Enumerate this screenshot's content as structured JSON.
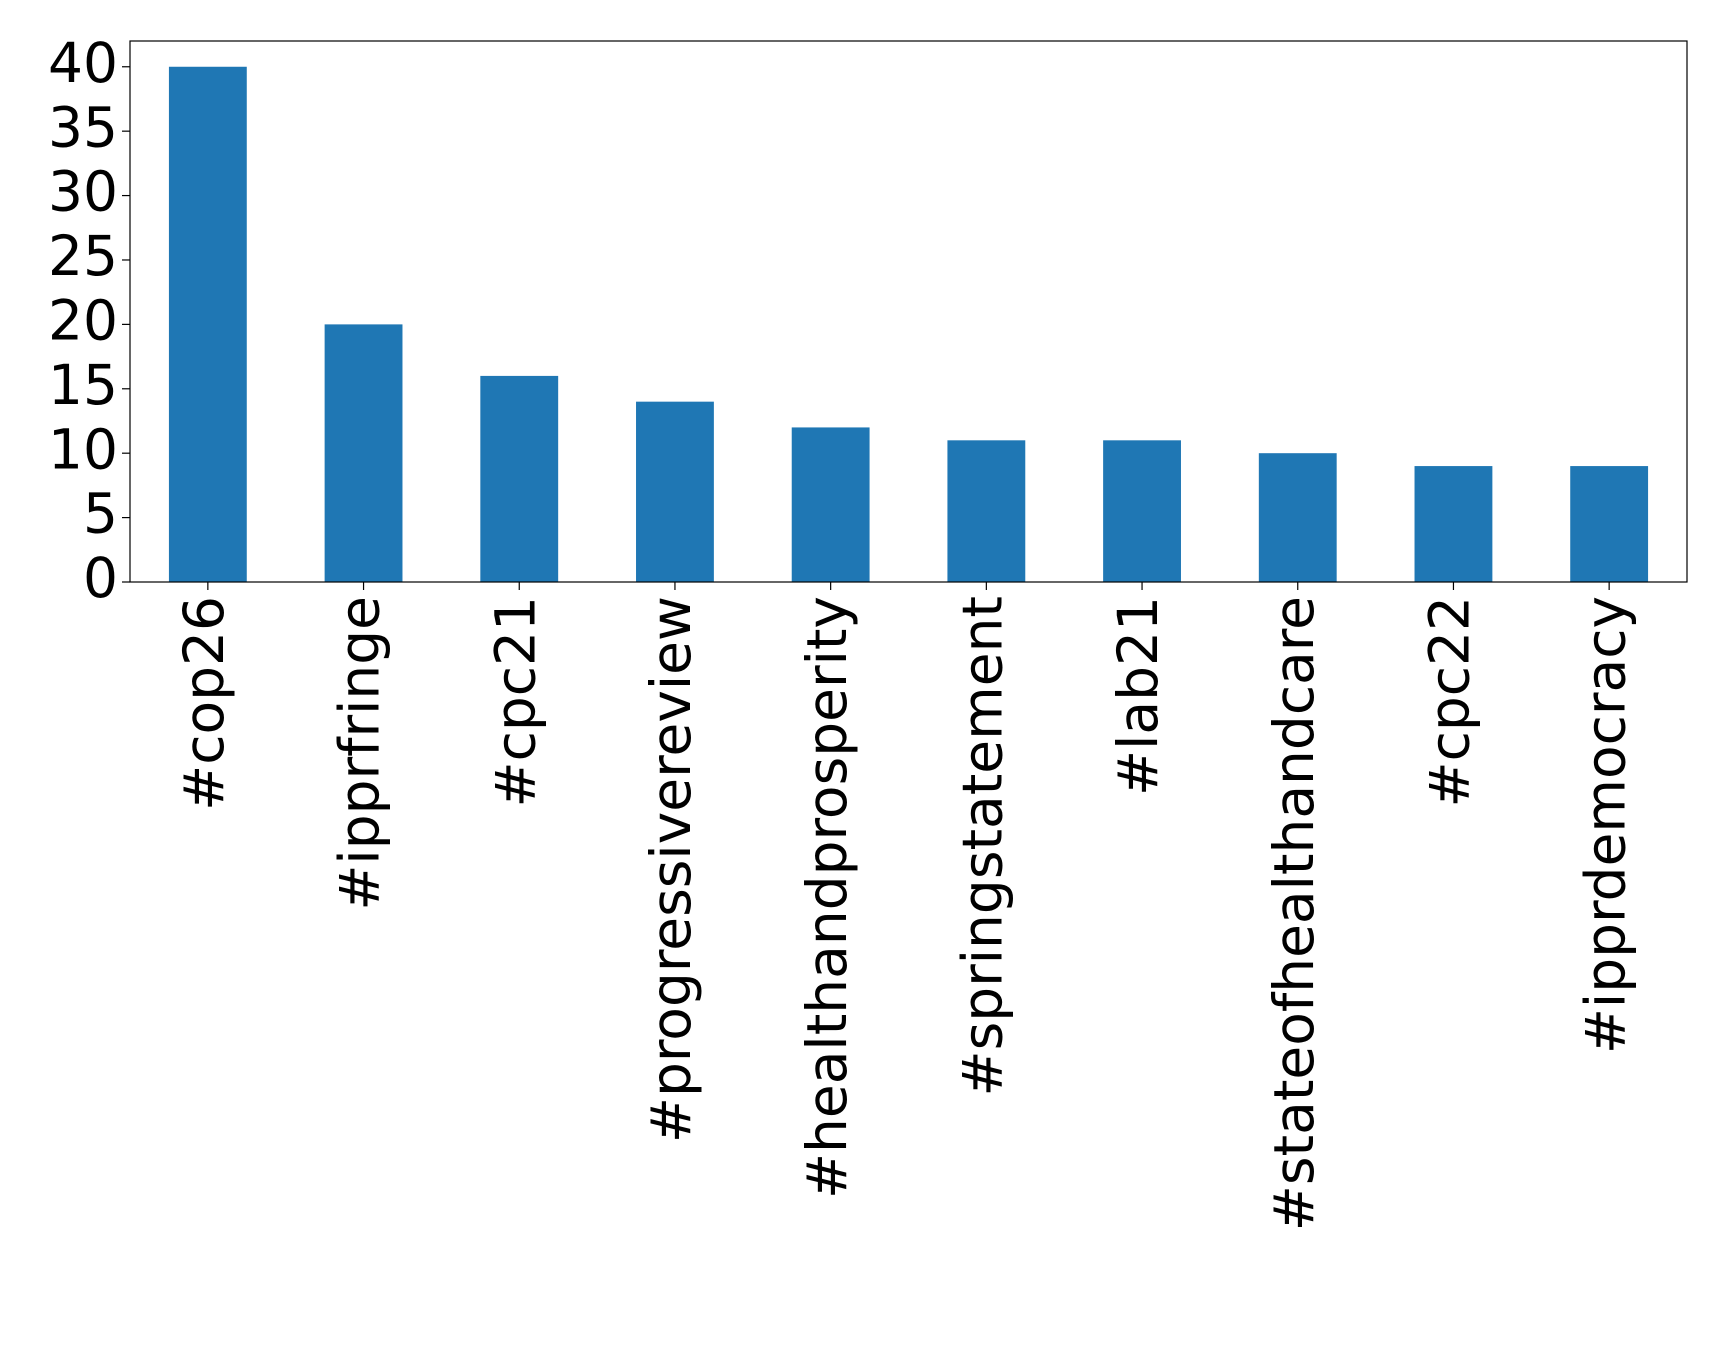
{
  "chart_data": {
    "type": "bar",
    "categories": [
      "#cop26",
      "#ipprfringe",
      "#cpc21",
      "#progressivereview",
      "#healthandprosperity",
      "#springstatement",
      "#lab21",
      "#stateofhealthandcare",
      "#cpc22",
      "#ipprdemocracy"
    ],
    "values": [
      40,
      20,
      16,
      14,
      12,
      11,
      11,
      10,
      9,
      9
    ],
    "color": "#1f77b4",
    "ylim": [
      0,
      42
    ],
    "yticks": [
      0,
      5,
      10,
      15,
      20,
      25,
      30,
      35,
      40
    ],
    "grid": false
  }
}
